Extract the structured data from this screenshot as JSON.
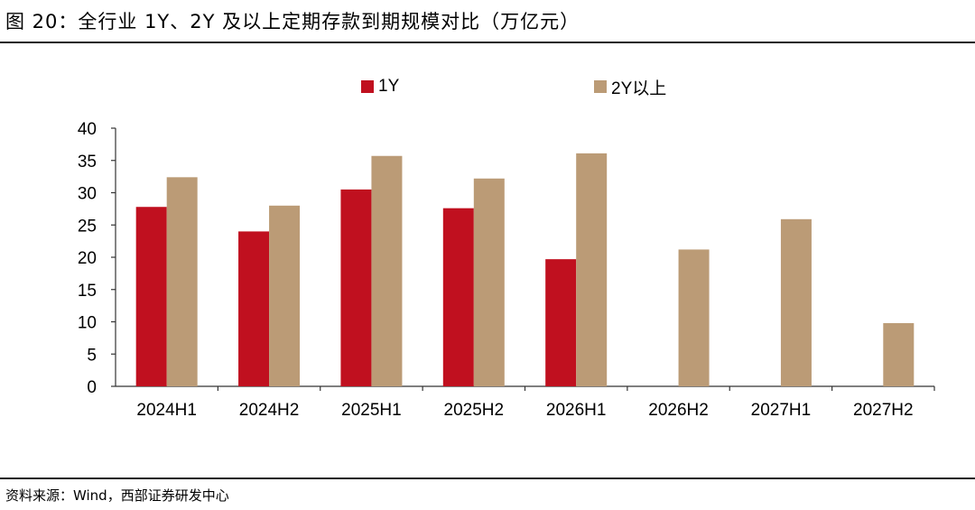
{
  "figure": {
    "title": "图 20：全行业 1Y、2Y 及以上定期存款到期规模对比（万亿元）",
    "source": "资料来源：Wind，西部证券研发中心"
  },
  "colors": {
    "series_1y": "#c0101f",
    "series_2y": "#bb9b76",
    "axis": "#333333",
    "rule": "#1a1a1a"
  },
  "chart_data": {
    "type": "bar",
    "title": "",
    "xlabel": "",
    "ylabel": "",
    "categories": [
      "2024H1",
      "2024H2",
      "2025H1",
      "2025H2",
      "2026H1",
      "2026H2",
      "2027H1",
      "2027H2"
    ],
    "series": [
      {
        "name": "1Y",
        "values": [
          27.8,
          24.0,
          30.5,
          27.6,
          19.7,
          null,
          null,
          null
        ]
      },
      {
        "name": "2Y以上",
        "values": [
          32.4,
          28.0,
          35.7,
          32.2,
          36.1,
          21.2,
          25.9,
          9.8
        ]
      }
    ],
    "ylim": [
      0,
      40
    ],
    "yticks": [
      0,
      5,
      10,
      15,
      20,
      25,
      30,
      35,
      40
    ],
    "grid": false,
    "legend": "top-center"
  }
}
